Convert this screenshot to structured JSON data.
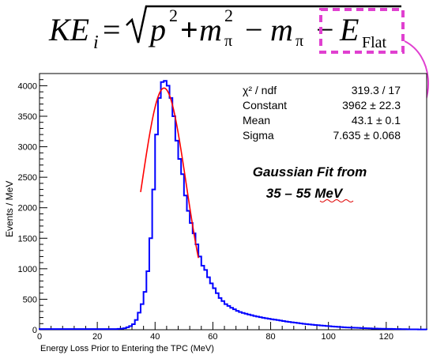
{
  "equation": {
    "ke": "KE",
    "ke_sub": "i",
    "equals": "=",
    "p": "p",
    "p_sup": "2",
    "plus": "+",
    "m": "m",
    "m_sup": "2",
    "m_sub": "π",
    "minus": "−",
    "m2": "m",
    "m2_sub": "π",
    "minus2": "−",
    "e": "E",
    "e_sub": "Flat",
    "highlight_color": "#e040d0"
  },
  "stats": {
    "rows": [
      {
        "label": "χ² / ndf",
        "value": "319.3 / 17"
      },
      {
        "label": "Constant",
        "value": "3962 ± 22.3"
      },
      {
        "label": "Mean",
        "value": "43.1 ± 0.1"
      },
      {
        "label": "Sigma",
        "value": "7.635 ± 0.068"
      }
    ]
  },
  "annotation": {
    "line1": "Gaussian Fit from",
    "line2": "35 – 55 MeV"
  },
  "chart_data": {
    "type": "line",
    "xlabel": "Energy Loss Prior to Entering the TPC (MeV)",
    "ylabel": "Events / MeV",
    "xlim": [
      0,
      134
    ],
    "ylim": [
      0,
      4200
    ],
    "x_ticks": [
      0,
      20,
      40,
      60,
      80,
      100,
      120
    ],
    "y_ticks": [
      0,
      500,
      1000,
      1500,
      2000,
      2500,
      3000,
      3500,
      4000
    ],
    "histogram": {
      "bin_width": 1,
      "x_start": 0,
      "color": "#0000ff",
      "values": [
        12,
        12,
        12,
        12,
        12,
        12,
        12,
        12,
        12,
        12,
        12,
        12,
        12,
        12,
        12,
        12,
        12,
        12,
        12,
        12,
        12,
        12,
        12,
        12,
        12,
        12,
        12,
        15,
        18,
        25,
        40,
        60,
        90,
        160,
        280,
        420,
        620,
        960,
        1500,
        2300,
        3200,
        3800,
        4060,
        4080,
        4000,
        3800,
        3500,
        3100,
        2800,
        2550,
        2200,
        1950,
        1750,
        1580,
        1400,
        1200,
        1050,
        980,
        860,
        760,
        680,
        600,
        520,
        470,
        420,
        390,
        360,
        335,
        310,
        290,
        275,
        262,
        250,
        238,
        226,
        215,
        205,
        196,
        188,
        180,
        172,
        165,
        158,
        150,
        142,
        135,
        128,
        122,
        116,
        110,
        104,
        98,
        92,
        87,
        82,
        78,
        74,
        70,
        66,
        62,
        58,
        54,
        50,
        47,
        44,
        41,
        38,
        36,
        34,
        32,
        30,
        28,
        26,
        24,
        22,
        20,
        19,
        18,
        17,
        16,
        15,
        14,
        13,
        12,
        11,
        10,
        9,
        8,
        7,
        6,
        6,
        5,
        5,
        5
      ]
    },
    "fit": {
      "name": "Gaussian",
      "color": "#ff0000",
      "range": [
        35,
        55
      ],
      "constant": 3962,
      "mean": 43.1,
      "sigma": 7.635
    }
  }
}
